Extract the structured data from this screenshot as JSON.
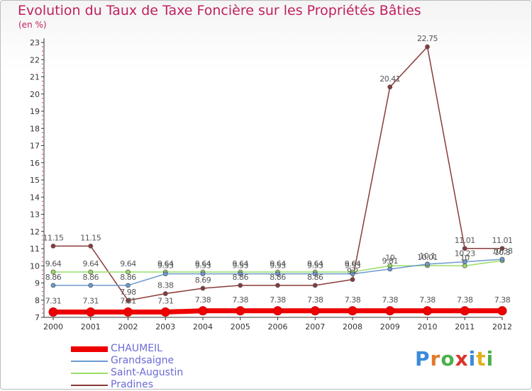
{
  "title": "Evolution du Taux de Taxe Foncière sur les Propriétés Bâties",
  "unit_label": "(en %)",
  "logo": {
    "letters": [
      "P",
      "r",
      "o",
      "x",
      "i",
      "t",
      "i"
    ],
    "colors": [
      "#3a8ad9",
      "#e07a2a",
      "#4bb04b",
      "#d9342b",
      "#3a8ad9",
      "#e0b020",
      "#4bb04b"
    ]
  },
  "chart_data": {
    "type": "line",
    "categories": [
      "2000",
      "2001",
      "2002",
      "2003",
      "2004",
      "2005",
      "2006",
      "2007",
      "2008",
      "2009",
      "2010",
      "2011",
      "2012"
    ],
    "ylim": [
      7,
      23
    ],
    "yticks": [
      "7",
      "8",
      "9",
      "10",
      "11",
      "12",
      "13",
      "14",
      "15",
      "16",
      "17",
      "18",
      "19",
      "20",
      "21",
      "22",
      "23"
    ],
    "grid": false,
    "legend_position": "bottom-left",
    "series": [
      {
        "name": "CHAUMEIL",
        "color": "#ee0000",
        "values": [
          7.31,
          7.31,
          7.31,
          7.31,
          7.38,
          7.38,
          7.38,
          7.38,
          7.38,
          7.38,
          7.38,
          7.38,
          7.38
        ],
        "labels": [
          "7.31",
          "7.31",
          "7.31",
          "7.31",
          "7.38",
          "7.38",
          "7.38",
          "7.38",
          "7.38",
          "7.38",
          "7.38",
          "7.38",
          "7.38"
        ]
      },
      {
        "name": "Grandsaigne",
        "color": "#6c9ad0",
        "values": [
          8.86,
          8.86,
          8.86,
          9.53,
          9.53,
          9.53,
          9.53,
          9.53,
          9.53,
          9.81,
          10.1,
          10.23,
          10.38
        ],
        "labels": [
          "8.86",
          "8.86",
          "8.86",
          "9.53",
          "9.53",
          "9.53",
          "9.53",
          "9.53",
          "9.53",
          "9.81",
          "10.1",
          "10.23",
          "10.38"
        ]
      },
      {
        "name": "Saint-Augustin",
        "color": "#99dd66",
        "values": [
          9.64,
          9.64,
          9.64,
          9.64,
          9.64,
          9.64,
          9.64,
          9.64,
          9.64,
          10.0,
          10.01,
          10.0,
          10.3
        ],
        "labels": [
          "9.64",
          "9.64",
          "9.64",
          "9.64",
          "9.64",
          "9.64",
          "9.64",
          "9.64",
          "9.64",
          "10",
          "10.01",
          "10",
          "10.3"
        ]
      },
      {
        "name": "Pradines",
        "color": "#8b3a3a",
        "values": [
          11.15,
          11.15,
          7.98,
          8.38,
          8.69,
          8.86,
          8.86,
          8.86,
          9.2,
          20.41,
          22.75,
          11.01,
          11.01
        ],
        "labels": [
          "11.15",
          "11.15",
          "7.98",
          "8.38",
          "8.69",
          "8.86",
          "8.86",
          "8.86",
          "9.2",
          "20.41",
          "22.75",
          "11.01",
          "11.01"
        ]
      }
    ]
  }
}
